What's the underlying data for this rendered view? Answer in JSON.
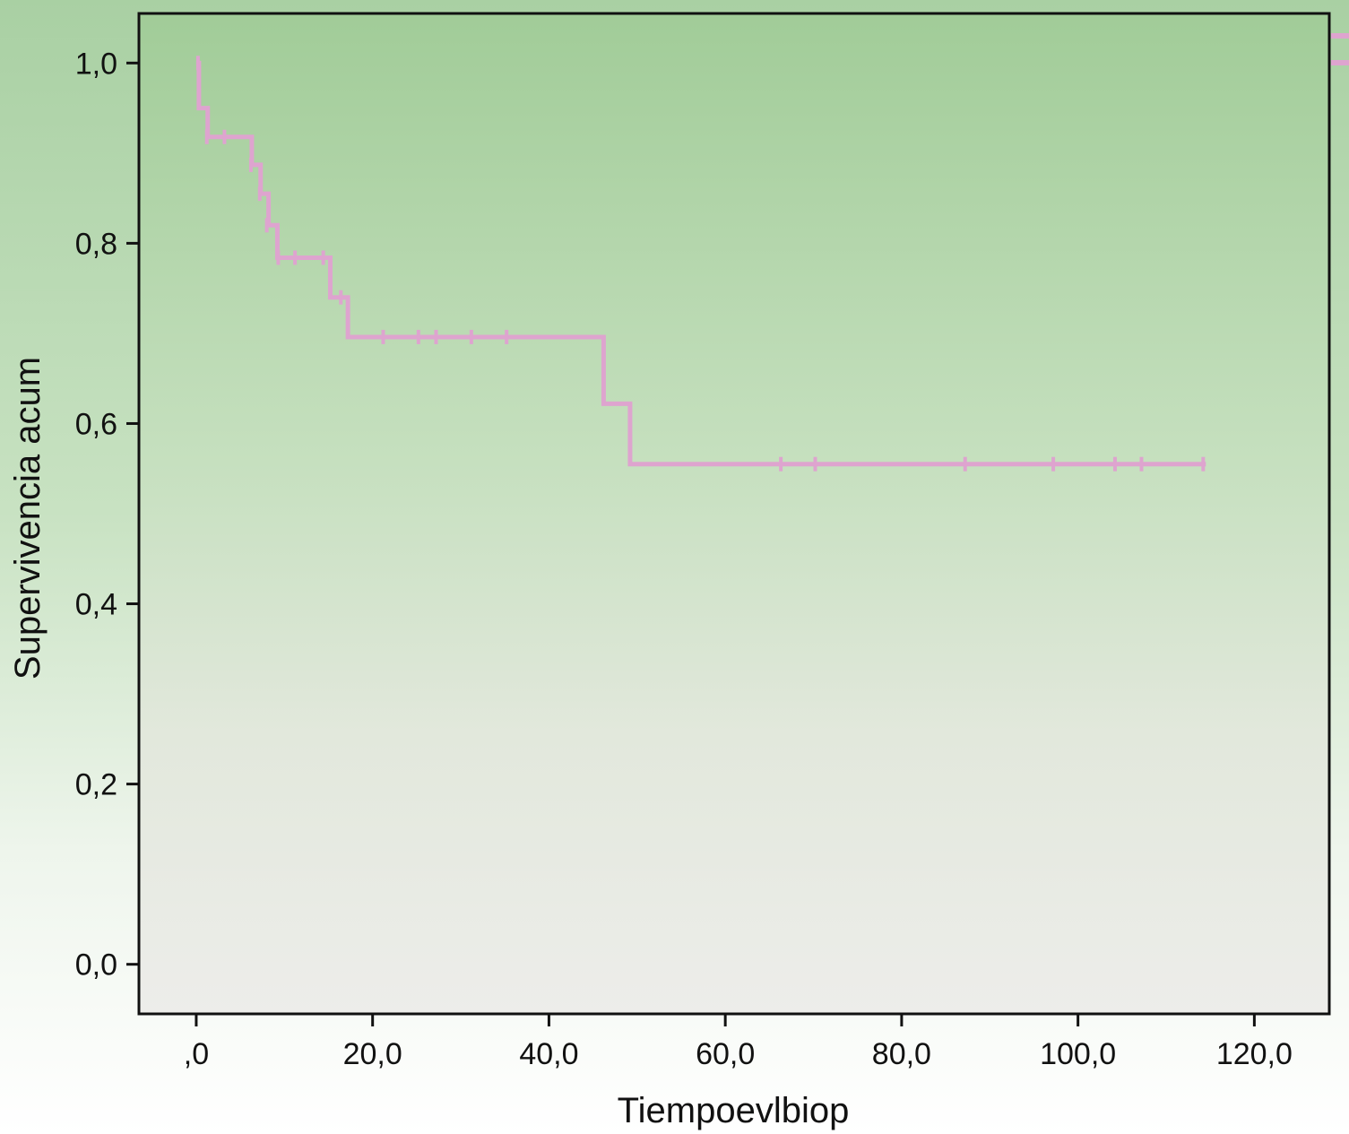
{
  "chart_data": {
    "type": "line",
    "step": true,
    "xlabel": "Tiempoevlbiop",
    "ylabel": "Supervivencia acum",
    "xlim": [
      -6.5,
      128.5
    ],
    "ylim": [
      -0.055,
      1.055
    ],
    "x_ticks": [
      {
        "value": 0,
        "label": ",0"
      },
      {
        "value": 20,
        "label": "20,0"
      },
      {
        "value": 40,
        "label": "40,0"
      },
      {
        "value": 60,
        "label": "60,0"
      },
      {
        "value": 80,
        "label": "80,0"
      },
      {
        "value": 100,
        "label": "100,0"
      },
      {
        "value": 120,
        "label": "120,0"
      }
    ],
    "y_ticks": [
      {
        "value": 0.0,
        "label": "0,0"
      },
      {
        "value": 0.2,
        "label": "0,2"
      },
      {
        "value": 0.4,
        "label": "0,4"
      },
      {
        "value": 0.6,
        "label": "0,6"
      },
      {
        "value": 0.8,
        "label": "0,8"
      },
      {
        "value": 1.0,
        "label": "1,0"
      }
    ],
    "series": [
      {
        "color": "#dea4cf",
        "steps": [
          {
            "x": 0,
            "y": 1.0
          },
          {
            "x": 0.3,
            "y": 0.95
          },
          {
            "x": 1.3,
            "y": 0.918
          },
          {
            "x": 6.3,
            "y": 0.887
          },
          {
            "x": 7.3,
            "y": 0.855
          },
          {
            "x": 8.2,
            "y": 0.82
          },
          {
            "x": 9.2,
            "y": 0.784
          },
          {
            "x": 15.2,
            "y": 0.74
          },
          {
            "x": 17.2,
            "y": 0.696
          },
          {
            "x": 46.2,
            "y": 0.622
          },
          {
            "x": 49.2,
            "y": 0.555
          }
        ],
        "end_x": 114.5,
        "censored": [
          {
            "x": 0.2,
            "y": 1.0
          },
          {
            "x": 1.2,
            "y": 0.918
          },
          {
            "x": 3.2,
            "y": 0.918
          },
          {
            "x": 6.2,
            "y": 0.887
          },
          {
            "x": 7.2,
            "y": 0.855
          },
          {
            "x": 8.0,
            "y": 0.82
          },
          {
            "x": 9.3,
            "y": 0.784
          },
          {
            "x": 11.2,
            "y": 0.784
          },
          {
            "x": 14.4,
            "y": 0.784
          },
          {
            "x": 16.4,
            "y": 0.74
          },
          {
            "x": 21.2,
            "y": 0.696
          },
          {
            "x": 25.2,
            "y": 0.696
          },
          {
            "x": 27.2,
            "y": 0.696
          },
          {
            "x": 31.2,
            "y": 0.696
          },
          {
            "x": 35.2,
            "y": 0.696
          },
          {
            "x": 66.3,
            "y": 0.555
          },
          {
            "x": 70.2,
            "y": 0.555
          },
          {
            "x": 87.2,
            "y": 0.555
          },
          {
            "x": 97.2,
            "y": 0.555
          },
          {
            "x": 104.2,
            "y": 0.555
          },
          {
            "x": 107.2,
            "y": 0.555
          },
          {
            "x": 114.2,
            "y": 0.555
          }
        ]
      }
    ]
  }
}
